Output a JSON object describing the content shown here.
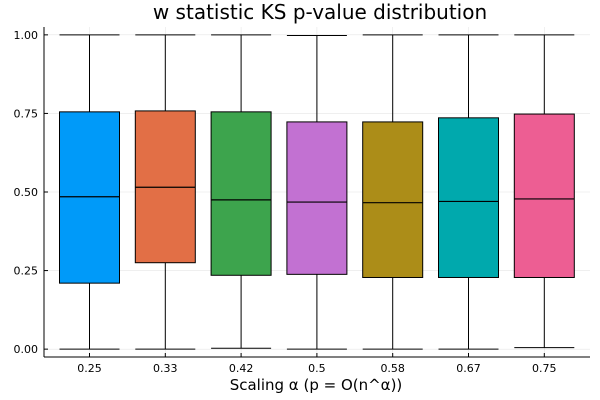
{
  "chart_data": {
    "type": "box",
    "title": "w statistic KS p-value distribution",
    "xlabel": "Scaling α (p = O(n^α))",
    "ylabel": "",
    "ylim": [
      -0.025,
      1.025
    ],
    "y_ticks": [
      0.0,
      0.25,
      0.5,
      0.75,
      1.0
    ],
    "y_tick_labels": [
      "0.00",
      "0.25",
      "0.50",
      "0.75",
      "1.00"
    ],
    "grid": true,
    "legend": "none",
    "categories": [
      "0.25",
      "0.33",
      "0.42",
      "0.5",
      "0.58",
      "0.67",
      "0.75"
    ],
    "series": [
      {
        "category": "0.25",
        "color": "#009af9",
        "min": 0.0,
        "q1": 0.21,
        "median": 0.485,
        "q3": 0.755,
        "max": 1.0
      },
      {
        "category": "0.33",
        "color": "#e26f46",
        "min": 0.0,
        "q1": 0.275,
        "median": 0.515,
        "q3": 0.758,
        "max": 1.0
      },
      {
        "category": "0.42",
        "color": "#3da44d",
        "min": 0.003,
        "q1": 0.235,
        "median": 0.475,
        "q3": 0.755,
        "max": 1.0
      },
      {
        "category": "0.5",
        "color": "#c271d2",
        "min": 0.0,
        "q1": 0.238,
        "median": 0.468,
        "q3": 0.723,
        "max": 0.998
      },
      {
        "category": "0.58",
        "color": "#ac8d18",
        "min": 0.0,
        "q1": 0.228,
        "median": 0.466,
        "q3": 0.723,
        "max": 1.0
      },
      {
        "category": "0.67",
        "color": "#00a9ad",
        "min": 0.0,
        "q1": 0.228,
        "median": 0.47,
        "q3": 0.736,
        "max": 1.0
      },
      {
        "category": "0.75",
        "color": "#ed5e93",
        "min": 0.005,
        "q1": 0.228,
        "median": 0.478,
        "q3": 0.748,
        "max": 1.0
      }
    ]
  }
}
